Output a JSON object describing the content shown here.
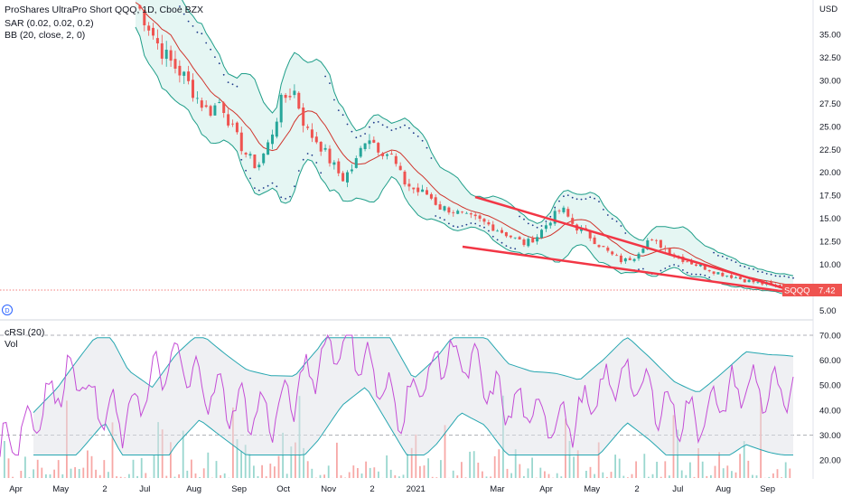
{
  "title": "ProShares UltraPro Short QQQ, 1D, Cboe BZX",
  "indicators": {
    "sar": "SAR (0.02, 0.02, 0.2)",
    "bb": "BB (20, close, 2, 0)",
    "crsi": "cRSI (20)",
    "vol": "Vol"
  },
  "currency": "USD",
  "symbol_tag": "SQQQ",
  "last_price": "7.42",
  "price_axis": [
    "35.00",
    "32.50",
    "30.00",
    "27.50",
    "25.00",
    "22.50",
    "20.00",
    "17.50",
    "15.00",
    "12.50",
    "10.00",
    "7.50",
    "5.00"
  ],
  "osc_axis": [
    "70.00",
    "60.00",
    "50.00",
    "40.00",
    "30.00",
    "20.00"
  ],
  "time_axis": [
    "Apr",
    "May",
    "2",
    "Jul",
    "Aug",
    "Sep",
    "Oct",
    "Nov",
    "2",
    "2021",
    "Mar",
    "Apr",
    "May",
    "2",
    "Jul",
    "Aug",
    "Sep"
  ],
  "colors": {
    "up": "#26a69a",
    "down": "#ef5350",
    "bb_fill": "#e0f4f1",
    "bb_line": "#1f9e89",
    "basis": "#d0342c",
    "sar": "#1e3a8a",
    "trend": "#f23645",
    "crsi": "#c44dd6",
    "band": "#26a6b0",
    "accent_blue": "#2962ff"
  },
  "chart_data": {
    "type": "line",
    "price_series_close": [
      38.5,
      36.2,
      33.5,
      31.8,
      30.4,
      28.2,
      26.5,
      27.8,
      24.5,
      22.1,
      20.5,
      23.4,
      27.8,
      29.0,
      24.6,
      23.3,
      21.2,
      19.3,
      20.8,
      24.2,
      22.6,
      21.8,
      19.0,
      18.0,
      17.6,
      16.2,
      15.9,
      15.2,
      14.9,
      14.3,
      13.6,
      12.9,
      12.2,
      13.1,
      14.8,
      16.1,
      14.2,
      13.4,
      12.2,
      11.1,
      10.3,
      10.9,
      12.6,
      12.2,
      11.2,
      10.5,
      10.0,
      9.5,
      9.0,
      8.7,
      8.3,
      8.0,
      7.8,
      7.5,
      7.42
    ],
    "trendline_upper": {
      "start": [
        "Jan '21",
        17.6
      ],
      "end": [
        "Sep '21",
        7.9
      ]
    },
    "trendline_lower": {
      "start": [
        "Jan '21",
        12.0
      ],
      "end": [
        "Sep '21",
        7.4
      ]
    },
    "crsi_levels": [
      25,
      33,
      45,
      57,
      40,
      35,
      50,
      60,
      52,
      44,
      40,
      38,
      48,
      62,
      70,
      55,
      40,
      50,
      63,
      58,
      45,
      40,
      38,
      35,
      44,
      55,
      48,
      40,
      36,
      43,
      50,
      47,
      45
    ],
    "ylim": [
      5,
      37.5
    ],
    "osc_ylim": [
      15,
      72
    ]
  }
}
